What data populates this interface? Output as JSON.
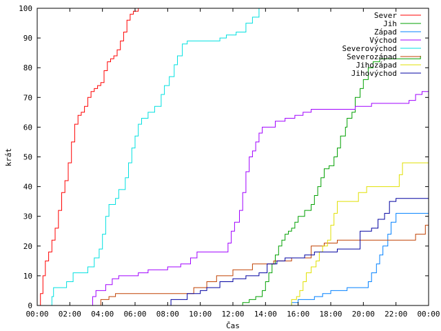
{
  "chart_data": {
    "type": "line",
    "xlabel": "Čas",
    "ylabel": "krát",
    "xlim": [
      0,
      24
    ],
    "ylim": [
      0,
      100
    ],
    "xticks": [
      {
        "v": 0,
        "label": "00:00"
      },
      {
        "v": 2,
        "label": "02:00"
      },
      {
        "v": 4,
        "label": "04:00"
      },
      {
        "v": 6,
        "label": "06:00"
      },
      {
        "v": 8,
        "label": "08:00"
      },
      {
        "v": 10,
        "label": "10:00"
      },
      {
        "v": 12,
        "label": "12:00"
      },
      {
        "v": 14,
        "label": "14:00"
      },
      {
        "v": 16,
        "label": "16:00"
      },
      {
        "v": 18,
        "label": "18:00"
      },
      {
        "v": 20,
        "label": "20:00"
      },
      {
        "v": 22,
        "label": "22:00"
      },
      {
        "v": 24,
        "label": "00:00"
      }
    ],
    "yticks": [
      {
        "v": 0,
        "label": "0"
      },
      {
        "v": 10,
        "label": "10"
      },
      {
        "v": 20,
        "label": "20"
      },
      {
        "v": 30,
        "label": "30"
      },
      {
        "v": 40,
        "label": "40"
      },
      {
        "v": 50,
        "label": "50"
      },
      {
        "v": 60,
        "label": "60"
      },
      {
        "v": 70,
        "label": "70"
      },
      {
        "v": 80,
        "label": "80"
      },
      {
        "v": 90,
        "label": "90"
      },
      {
        "v": 100,
        "label": "100"
      }
    ],
    "grid": false,
    "legend_position": "top-right",
    "series": [
      {
        "name": "Sever",
        "color": "#ff0000",
        "points": [
          [
            0.05,
            0
          ],
          [
            0.2,
            4
          ],
          [
            0.35,
            10
          ],
          [
            0.5,
            15
          ],
          [
            0.7,
            18
          ],
          [
            0.9,
            22
          ],
          [
            1.1,
            26
          ],
          [
            1.3,
            32
          ],
          [
            1.5,
            38
          ],
          [
            1.7,
            42
          ],
          [
            1.9,
            48
          ],
          [
            2.1,
            55
          ],
          [
            2.3,
            61
          ],
          [
            2.5,
            64
          ],
          [
            2.7,
            65
          ],
          [
            2.9,
            67
          ],
          [
            3.1,
            70
          ],
          [
            3.3,
            72
          ],
          [
            3.5,
            73
          ],
          [
            3.7,
            74
          ],
          [
            3.9,
            75
          ],
          [
            4.1,
            79
          ],
          [
            4.3,
            82
          ],
          [
            4.5,
            83
          ],
          [
            4.7,
            84
          ],
          [
            4.9,
            86
          ],
          [
            5.1,
            89
          ],
          [
            5.3,
            92
          ],
          [
            5.5,
            96
          ],
          [
            5.7,
            98
          ],
          [
            5.9,
            99
          ],
          [
            6.2,
            100
          ]
        ]
      },
      {
        "name": "Jih",
        "color": "#00a000",
        "points": [
          [
            12.4,
            0
          ],
          [
            12.6,
            1
          ],
          [
            13.0,
            2
          ],
          [
            13.4,
            3
          ],
          [
            13.8,
            5
          ],
          [
            14.0,
            8
          ],
          [
            14.2,
            11
          ],
          [
            14.4,
            14
          ],
          [
            14.6,
            17
          ],
          [
            14.8,
            20
          ],
          [
            15.0,
            22
          ],
          [
            15.2,
            24
          ],
          [
            15.4,
            25
          ],
          [
            15.6,
            26
          ],
          [
            15.8,
            28
          ],
          [
            16.0,
            30
          ],
          [
            16.4,
            32
          ],
          [
            16.8,
            34
          ],
          [
            17.0,
            37
          ],
          [
            17.2,
            40
          ],
          [
            17.4,
            43
          ],
          [
            17.6,
            46
          ],
          [
            17.9,
            47
          ],
          [
            18.2,
            50
          ],
          [
            18.4,
            53
          ],
          [
            18.6,
            57
          ],
          [
            18.9,
            60
          ],
          [
            19.0,
            63
          ],
          [
            19.3,
            65
          ],
          [
            19.5,
            70
          ],
          [
            19.8,
            73
          ],
          [
            20.0,
            76
          ],
          [
            20.3,
            80
          ],
          [
            20.6,
            82
          ],
          [
            21.0,
            83
          ],
          [
            22.0,
            83
          ],
          [
            23.5,
            84
          ]
        ]
      },
      {
        "name": "Západ",
        "color": "#0080ff",
        "points": [
          [
            15.2,
            0
          ],
          [
            15.6,
            1
          ],
          [
            16.0,
            2
          ],
          [
            17.0,
            3
          ],
          [
            17.5,
            4
          ],
          [
            18.0,
            5
          ],
          [
            19.0,
            6
          ],
          [
            20.0,
            6
          ],
          [
            20.3,
            8
          ],
          [
            20.5,
            11
          ],
          [
            20.8,
            14
          ],
          [
            21.0,
            17
          ],
          [
            21.2,
            20
          ],
          [
            21.5,
            24
          ],
          [
            21.7,
            28
          ],
          [
            22.0,
            31
          ],
          [
            24.0,
            31
          ]
        ]
      },
      {
        "name": "Východ",
        "color": "#a000ff",
        "points": [
          [
            3.2,
            0
          ],
          [
            3.4,
            3
          ],
          [
            3.6,
            5
          ],
          [
            4.2,
            7
          ],
          [
            4.6,
            9
          ],
          [
            5.0,
            10
          ],
          [
            6.2,
            11
          ],
          [
            6.8,
            12
          ],
          [
            7.6,
            12
          ],
          [
            8.0,
            13
          ],
          [
            8.8,
            14
          ],
          [
            9.4,
            16
          ],
          [
            9.8,
            18
          ],
          [
            11.4,
            18
          ],
          [
            11.7,
            21
          ],
          [
            11.9,
            25
          ],
          [
            12.1,
            28
          ],
          [
            12.4,
            32
          ],
          [
            12.6,
            38
          ],
          [
            12.8,
            45
          ],
          [
            13.0,
            50
          ],
          [
            13.2,
            52
          ],
          [
            13.4,
            55
          ],
          [
            13.6,
            58
          ],
          [
            13.8,
            60
          ],
          [
            14.6,
            62
          ],
          [
            15.2,
            63
          ],
          [
            15.8,
            64
          ],
          [
            16.3,
            65
          ],
          [
            16.8,
            66
          ],
          [
            19.5,
            67
          ],
          [
            20.5,
            68
          ],
          [
            21.5,
            68
          ],
          [
            22.8,
            69
          ],
          [
            23.2,
            71
          ],
          [
            23.6,
            72
          ],
          [
            24.0,
            72
          ]
        ]
      },
      {
        "name": "Severovýchod",
        "color": "#00e0e0",
        "points": [
          [
            0.7,
            0
          ],
          [
            0.9,
            3
          ],
          [
            1.0,
            6
          ],
          [
            1.8,
            8
          ],
          [
            2.2,
            11
          ],
          [
            3.1,
            13
          ],
          [
            3.5,
            16
          ],
          [
            3.8,
            19
          ],
          [
            4.0,
            24
          ],
          [
            4.2,
            30
          ],
          [
            4.4,
            34
          ],
          [
            4.8,
            36
          ],
          [
            5.0,
            39
          ],
          [
            5.4,
            43
          ],
          [
            5.6,
            48
          ],
          [
            5.8,
            53
          ],
          [
            6.0,
            57
          ],
          [
            6.2,
            61
          ],
          [
            6.4,
            63
          ],
          [
            6.8,
            65
          ],
          [
            7.2,
            67
          ],
          [
            7.6,
            71
          ],
          [
            7.8,
            74
          ],
          [
            8.1,
            77
          ],
          [
            8.4,
            81
          ],
          [
            8.6,
            84
          ],
          [
            8.9,
            88
          ],
          [
            9.2,
            89
          ],
          [
            11.2,
            90
          ],
          [
            11.6,
            91
          ],
          [
            12.2,
            92
          ],
          [
            12.8,
            95
          ],
          [
            13.2,
            97
          ],
          [
            13.6,
            100
          ]
        ]
      },
      {
        "name": "Severozápad",
        "color": "#c04000",
        "points": [
          [
            3.7,
            0
          ],
          [
            3.9,
            2
          ],
          [
            4.4,
            3
          ],
          [
            4.8,
            4
          ],
          [
            9.3,
            4
          ],
          [
            9.6,
            6
          ],
          [
            10.4,
            8
          ],
          [
            11.0,
            10
          ],
          [
            12.0,
            12
          ],
          [
            13.2,
            14
          ],
          [
            14.5,
            15
          ],
          [
            15.6,
            16
          ],
          [
            16.8,
            20
          ],
          [
            17.6,
            21
          ],
          [
            18.4,
            22
          ],
          [
            22.6,
            22
          ],
          [
            23.2,
            24
          ],
          [
            23.8,
            27
          ],
          [
            24.0,
            27
          ]
        ]
      },
      {
        "name": "Jihozápad",
        "color": "#e0e000",
        "points": [
          [
            15.3,
            0
          ],
          [
            15.6,
            2
          ],
          [
            15.9,
            3
          ],
          [
            16.1,
            5
          ],
          [
            16.3,
            8
          ],
          [
            16.5,
            11
          ],
          [
            16.8,
            13
          ],
          [
            17.1,
            15
          ],
          [
            17.3,
            18
          ],
          [
            17.5,
            20
          ],
          [
            17.8,
            22
          ],
          [
            18.0,
            27
          ],
          [
            18.2,
            31
          ],
          [
            18.4,
            35
          ],
          [
            19.5,
            35
          ],
          [
            19.7,
            38
          ],
          [
            20.2,
            40
          ],
          [
            22.0,
            40
          ],
          [
            22.2,
            44
          ],
          [
            22.4,
            48
          ],
          [
            24.0,
            48
          ]
        ]
      },
      {
        "name": "Jihovýchod",
        "color": "#0000a0",
        "points": [
          [
            8.0,
            0
          ],
          [
            8.2,
            2
          ],
          [
            9.2,
            4
          ],
          [
            10.0,
            5
          ],
          [
            10.4,
            6
          ],
          [
            11.2,
            8
          ],
          [
            12.0,
            9
          ],
          [
            12.8,
            10
          ],
          [
            13.6,
            11
          ],
          [
            14.1,
            14
          ],
          [
            14.7,
            15
          ],
          [
            15.2,
            16
          ],
          [
            16.4,
            17
          ],
          [
            17.0,
            18
          ],
          [
            18.0,
            18
          ],
          [
            18.4,
            19
          ],
          [
            19.3,
            19
          ],
          [
            19.8,
            25
          ],
          [
            20.5,
            26
          ],
          [
            20.9,
            29
          ],
          [
            21.3,
            31
          ],
          [
            21.6,
            35
          ],
          [
            22.0,
            36
          ],
          [
            24.0,
            36
          ]
        ]
      }
    ]
  }
}
